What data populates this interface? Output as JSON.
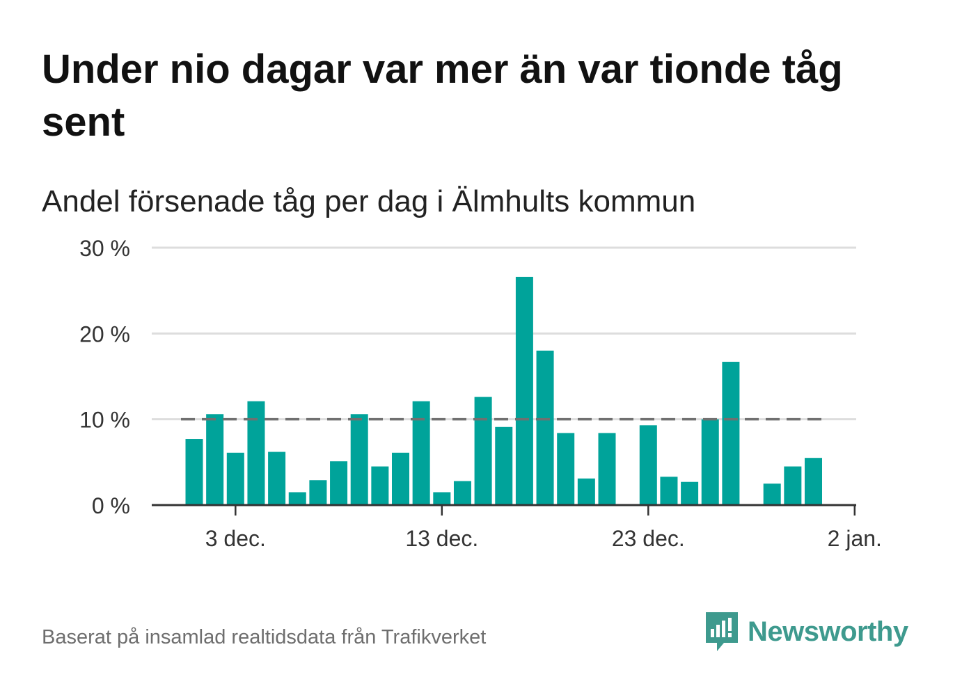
{
  "title": "Under nio dagar var mer än var tionde tåg sent",
  "subtitle": "Andel försenade tåg per dag i Älmhults kommun",
  "source": "Baserat på insamlad realtidsdata från Trafikverket",
  "brand": {
    "name": "Newsworthy",
    "color": "#3e9a8e"
  },
  "colors": {
    "bar": "#00a39a",
    "reference": "#707070",
    "grid": "#dddddd",
    "axis": "#333333"
  },
  "chart_data": {
    "type": "bar",
    "x_axis": "date",
    "ylim": [
      0,
      30
    ],
    "y_ticks": [
      {
        "value": 0,
        "label": "0 %"
      },
      {
        "value": 10,
        "label": "10 %"
      },
      {
        "value": 20,
        "label": "20 %"
      },
      {
        "value": 30,
        "label": "30 %"
      }
    ],
    "x_ticks": [
      {
        "date": "3 dec.",
        "label": "3 dec."
      },
      {
        "date": "13 dec.",
        "label": "13 dec."
      },
      {
        "date": "23 dec.",
        "label": "23 dec."
      },
      {
        "date": "2 jan.",
        "label": "2 jan."
      }
    ],
    "categories": [
      "1 dec.",
      "2 dec.",
      "3 dec.",
      "4 dec.",
      "5 dec.",
      "6 dec.",
      "7 dec.",
      "8 dec.",
      "9 dec.",
      "10 dec.",
      "11 dec.",
      "12 dec.",
      "13 dec.",
      "14 dec.",
      "15 dec.",
      "16 dec.",
      "17 dec.",
      "18 dec.",
      "19 dec.",
      "20 dec.",
      "21 dec.",
      "22 dec.",
      "23 dec.",
      "24 dec.",
      "25 dec.",
      "26 dec.",
      "27 dec.",
      "28 dec.",
      "29 dec.",
      "30 dec.",
      "31 dec."
    ],
    "values": [
      7.7,
      10.6,
      6.1,
      12.1,
      6.2,
      1.5,
      2.9,
      5.1,
      10.6,
      4.5,
      6.1,
      12.1,
      1.5,
      2.8,
      12.6,
      9.1,
      26.6,
      18.0,
      8.4,
      3.1,
      8.4,
      null,
      9.3,
      3.3,
      2.7,
      10.0,
      16.7,
      null,
      2.5,
      4.5,
      5.5
    ],
    "reference_line": {
      "value": 10,
      "style": "dashed"
    },
    "grid": true,
    "legend": "none"
  }
}
